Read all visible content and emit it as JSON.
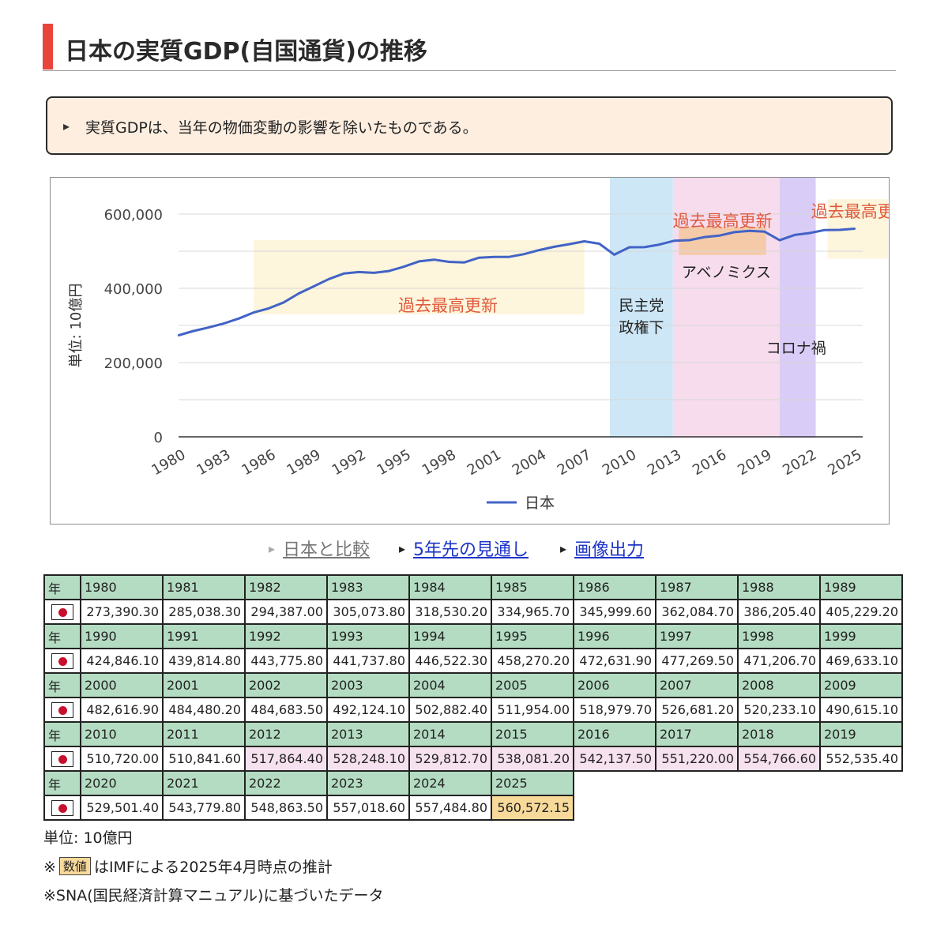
{
  "page": {
    "title": "日本の実質GDP(自国通貨)の推移",
    "note": "実質GDPは、当年の物価変動の影響を除いたものである。",
    "links": [
      {
        "label": "日本と比較"
      },
      {
        "label": "5年先の見通し"
      },
      {
        "label": "画像出力"
      }
    ],
    "table": {
      "year_header": "年",
      "flag_icon": "japan-flag-icon"
    },
    "footnotes": {
      "unit": "単位: 10億円",
      "estimate_prefix": "※",
      "estimate_badge": "数値",
      "estimate_suffix": "はIMFによる2025年4月時点の推計",
      "sna": "※SNA(国民経済計算マニュアル)に基づいたデータ"
    },
    "colors": {
      "line": "#4263c6",
      "band_yellow": "#fdf3d6",
      "band_blue": "#cde7f7",
      "band_pink": "#f6dcec",
      "band_purple": "#d9ccf6",
      "band_orange": "#f5c79c",
      "record_label": "#e05a3c",
      "table_year_bg": "#b4dcc2",
      "table_pink": "#f6e1ee",
      "table_yellow": "#f7d99a"
    }
  },
  "chart_data": {
    "type": "line",
    "title": "",
    "xlabel": "",
    "ylabel": "単位: 10億円",
    "ylim": [
      0,
      600000
    ],
    "yticks": [
      0,
      200000,
      400000,
      600000
    ],
    "ytick_labels": [
      "0",
      "200,000",
      "400,000",
      "600,000"
    ],
    "xticks": [
      1980,
      1983,
      1986,
      1989,
      1992,
      1995,
      1998,
      2001,
      2004,
      2007,
      2010,
      2013,
      2016,
      2019,
      2022,
      2025
    ],
    "grid": true,
    "legend": {
      "position": "bottom",
      "label": "日本"
    },
    "series": [
      {
        "name": "日本",
        "x": [
          1980,
          1981,
          1982,
          1983,
          1984,
          1985,
          1986,
          1987,
          1988,
          1989,
          1990,
          1991,
          1992,
          1993,
          1994,
          1995,
          1996,
          1997,
          1998,
          1999,
          2000,
          2001,
          2002,
          2003,
          2004,
          2005,
          2006,
          2007,
          2008,
          2009,
          2010,
          2011,
          2012,
          2013,
          2014,
          2015,
          2016,
          2017,
          2018,
          2019,
          2020,
          2021,
          2022,
          2023,
          2024,
          2025
        ],
        "values": [
          273390.3,
          285038.3,
          294387.0,
          305073.8,
          318530.2,
          334965.7,
          345999.6,
          362084.7,
          386205.4,
          405229.2,
          424846.1,
          439814.8,
          443775.8,
          441737.8,
          446522.3,
          458270.2,
          472631.9,
          477269.5,
          471206.7,
          469633.1,
          482616.9,
          484480.2,
          484683.5,
          492124.1,
          502882.4,
          511954.0,
          518979.7,
          526681.2,
          520233.1,
          490615.1,
          510720.0,
          510841.6,
          517864.4,
          528248.1,
          529812.7,
          538081.2,
          542137.5,
          551220.0,
          554766.6,
          552535.4,
          529501.4,
          543779.8,
          548863.5,
          557018.6,
          557484.8,
          560572.15
        ],
        "estimated_from": 2025,
        "formatted": [
          "273,390.30",
          "285,038.30",
          "294,387.00",
          "305,073.80",
          "318,530.20",
          "334,965.70",
          "345,999.60",
          "362,084.70",
          "386,205.40",
          "405,229.20",
          "424,846.10",
          "439,814.80",
          "443,775.80",
          "441,737.80",
          "446,522.30",
          "458,270.20",
          "472,631.90",
          "477,269.50",
          "471,206.70",
          "469,633.10",
          "482,616.90",
          "484,480.20",
          "484,683.50",
          "492,124.10",
          "502,882.40",
          "511,954.00",
          "518,979.70",
          "526,681.20",
          "520,233.10",
          "490,615.10",
          "510,720.00",
          "510,841.60",
          "517,864.40",
          "528,248.10",
          "529,812.70",
          "538,081.20",
          "542,137.50",
          "551,220.00",
          "554,766.60",
          "552,535.40",
          "529,501.40",
          "543,779.80",
          "548,863.50",
          "557,018.60",
          "557,484.80",
          "560,572.15"
        ]
      }
    ],
    "periods": [
      {
        "label": "民主党\n政権下",
        "x_start": 2008.7,
        "x_end": 2012.9,
        "color": "band_blue"
      },
      {
        "label": "アベノミクス",
        "x_start": 2012.9,
        "x_end": 2020.0,
        "color": "band_pink"
      },
      {
        "label": "コロナ禍",
        "x_start": 2020.0,
        "x_end": 2022.4,
        "color": "band_purple"
      }
    ],
    "record_annotations": [
      {
        "label": "過去最高更新",
        "x_start": 1985.0,
        "x_end": 2007.0,
        "y_low": 330000,
        "y_high": 530000,
        "color": "band_yellow"
      },
      {
        "label": "過去最高更新",
        "x_start": 2013.3,
        "x_end": 2019.1,
        "y_low": 490000,
        "y_high": 565000,
        "color": "band_orange"
      },
      {
        "label": "過去最高更新",
        "x_start": 2023.2,
        "x_end": 2027.2,
        "y_low": 480000,
        "y_high": 640000,
        "color": "band_yellow"
      }
    ]
  }
}
